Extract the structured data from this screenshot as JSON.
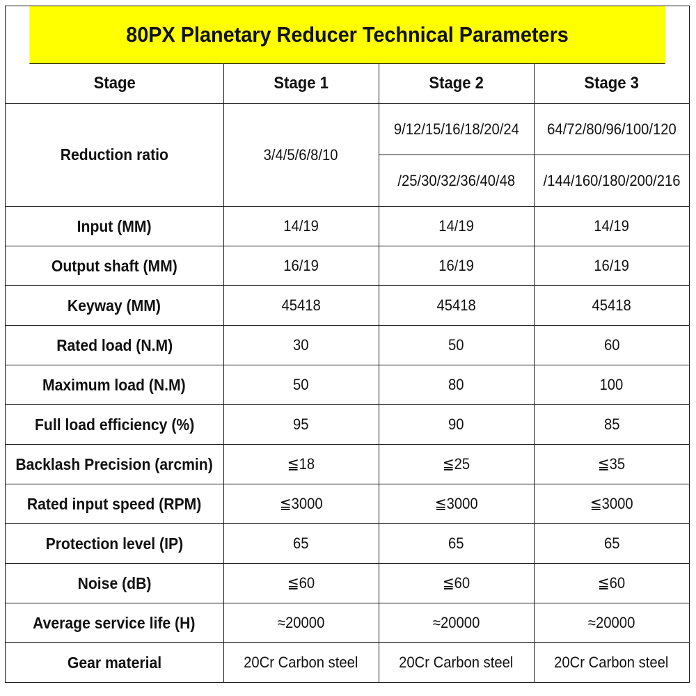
{
  "title": "80PX Planetary Reducer Technical Parameters",
  "header": {
    "label": "Stage",
    "stages": [
      "Stage 1",
      "Stage 2",
      "Stage 3"
    ]
  },
  "reduction_ratio": {
    "label": "Reduction ratio",
    "stage1": "3/4/5/6/8/10",
    "stage2_line1": "9/12/15/16/18/20/24",
    "stage2_line2": "/25/30/32/36/40/48",
    "stage3_line1": "64/72/80/96/100/120",
    "stage3_line2": "/144/160/180/200/216"
  },
  "rows": [
    {
      "label": "Input (MM)",
      "values": [
        "14/19",
        "14/19",
        "14/19"
      ]
    },
    {
      "label": "Output shaft (MM)",
      "values": [
        "16/19",
        "16/19",
        "16/19"
      ]
    },
    {
      "label": "Keyway (MM)",
      "values": [
        "45418",
        "45418",
        "45418"
      ]
    },
    {
      "label": "Rated load (N.M)",
      "values": [
        "30",
        "50",
        "60"
      ]
    },
    {
      "label": "Maximum load (N.M)",
      "values": [
        "50",
        "80",
        "100"
      ]
    },
    {
      "label": "Full load efficiency (%)",
      "values": [
        "95",
        "90",
        "85"
      ]
    },
    {
      "label": "Backlash Precision (arcmin)",
      "values": [
        "≦18",
        "≦25",
        "≦35"
      ]
    },
    {
      "label": "Rated input speed (RPM)",
      "values": [
        "≦3000",
        "≦3000",
        "≦3000"
      ]
    },
    {
      "label": "Protection level (IP)",
      "values": [
        "65",
        "65",
        "65"
      ]
    },
    {
      "label": "Noise (dB)",
      "values": [
        "≦60",
        "≦60",
        "≦60"
      ]
    },
    {
      "label": "Average service life (H)",
      "values": [
        "≈20000",
        "≈20000",
        "≈20000"
      ]
    },
    {
      "label": "Gear material",
      "values": [
        "20Cr Carbon steel",
        "20Cr Carbon steel",
        "20Cr Carbon steel"
      ]
    }
  ],
  "colors": {
    "title_background": "#ffff00",
    "border": "#1a1a1a",
    "text": "#111111"
  }
}
